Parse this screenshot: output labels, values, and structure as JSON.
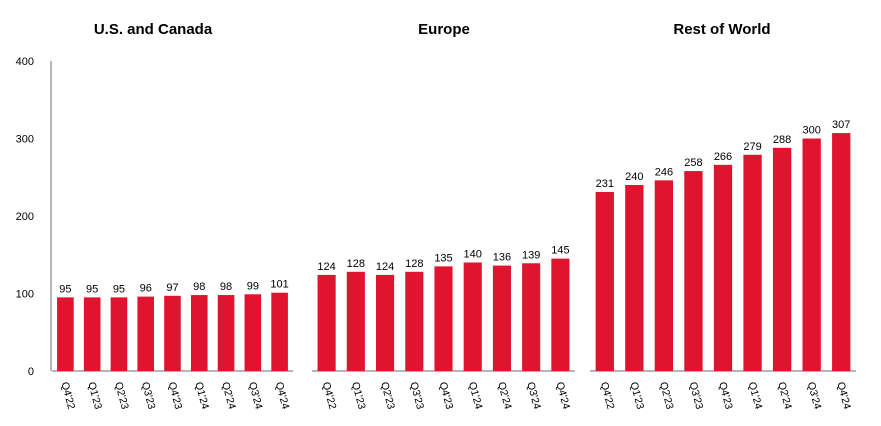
{
  "chart_data": {
    "type": "bar",
    "ylim": [
      0,
      400
    ],
    "yticks": [
      "0",
      "100",
      "200",
      "300",
      "400"
    ],
    "bar_color": "#e0142f",
    "panels": [
      {
        "title": "U.S. and Canada",
        "categories": [
          "Q4'22",
          "Q1'23",
          "Q2'23",
          "Q3'23",
          "Q4'23",
          "Q1'24",
          "Q2'24",
          "Q3'24",
          "Q4'24"
        ],
        "values": [
          95,
          95,
          95,
          96,
          97,
          98,
          98,
          99,
          101
        ]
      },
      {
        "title": "Europe",
        "categories": [
          "Q4'22",
          "Q1'23",
          "Q2'23",
          "Q3'23",
          "Q4'23",
          "Q1'24",
          "Q2'24",
          "Q3'24",
          "Q4'24"
        ],
        "values": [
          124,
          128,
          124,
          128,
          135,
          140,
          136,
          139,
          145
        ]
      },
      {
        "title": "Rest of World",
        "categories": [
          "Q4'22",
          "Q1'23",
          "Q2'23",
          "Q3'23",
          "Q4'23",
          "Q1'24",
          "Q2'24",
          "Q3'24",
          "Q4'24"
        ],
        "values": [
          231,
          240,
          246,
          258,
          266,
          279,
          288,
          300,
          307
        ]
      }
    ]
  }
}
